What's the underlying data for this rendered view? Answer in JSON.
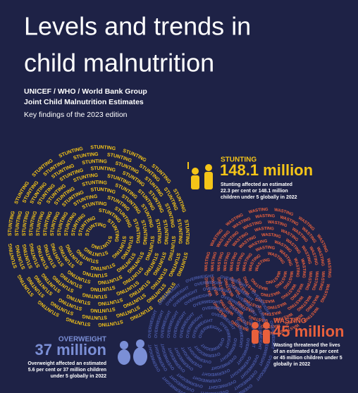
{
  "header": {
    "title_lines": [
      "Levels and trends in",
      "child malnutrition"
    ],
    "subtitle_lines": [
      "UNICEF / WHO / World Bank Group",
      "Joint Child Malnutrition Estimates"
    ],
    "edition": "Key findings of the 2023 edition"
  },
  "stunting": {
    "label": "STUNTING",
    "figure": "148.1 million",
    "spiral_word": "STUNTING",
    "description_lines": [
      "Stunting affected an estimated",
      "22.3 per cent or 148.1 million",
      "children under 5 globally in 2022"
    ]
  },
  "wasting": {
    "label": "WASTING",
    "figure": "45 million",
    "spiral_word": "WASTING",
    "description_lines": [
      "Wasting threatened the lives",
      "of an estimated 6.8 per cent",
      "or 45 million children under 5",
      "globally in 2022"
    ]
  },
  "overweight": {
    "label": "OVERWEIGHT",
    "figure": "37 million",
    "spiral_word": "OVERWEIGHT",
    "description_lines": [
      "Overweight affected an estimated",
      "5.6 per cent or 37 million children",
      "under 5 globally in 2022"
    ]
  }
}
